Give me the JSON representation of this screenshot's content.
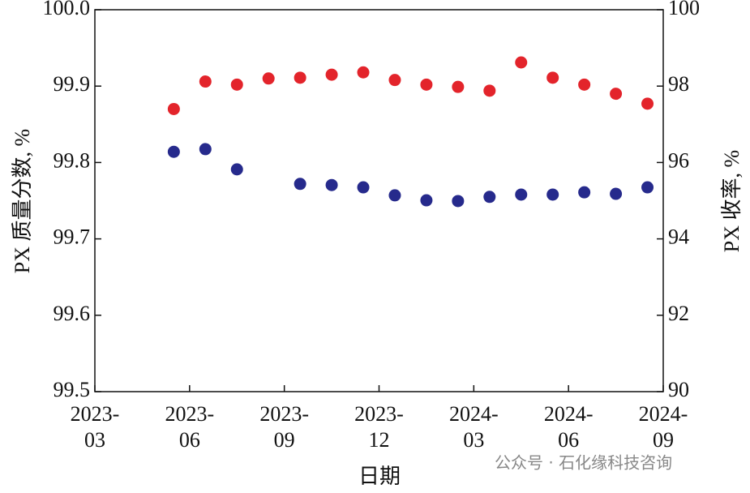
{
  "chart_data": {
    "type": "scatter",
    "y_label": "PX 质量分数, %",
    "y2_label": "PX 收率, %",
    "x_label": "日期",
    "watermark": "公众号 · 石化缘科技咨询",
    "x": [
      "2023-05",
      "2023-06",
      "2023-07",
      "2023-08",
      "2023-09",
      "2023-10",
      "2023-11",
      "2023-12",
      "2024-01",
      "2024-02",
      "2024-03",
      "2024-04",
      "2024-05",
      "2024-06",
      "2024-07",
      "2024-08"
    ],
    "xlim": [
      "2023-03",
      "2024-09"
    ],
    "xticks": [
      "2023-03",
      "2023-06",
      "2023-09",
      "2023-12",
      "2024-03",
      "2024-06",
      "2024-09"
    ],
    "ylim": [
      99.5,
      100.0
    ],
    "yticks": [
      99.5,
      99.6,
      99.7,
      99.8,
      99.9,
      {
        "value": 100.0,
        "label": "100.0"
      }
    ],
    "y2lim": [
      90,
      100
    ],
    "y2ticks": [
      90,
      92,
      94,
      96,
      98,
      100
    ],
    "series": [
      {
        "color": "#e3242b",
        "values": [
          99.87,
          99.906,
          99.902,
          99.91,
          99.911,
          99.915,
          99.918,
          99.908,
          99.902,
          99.899,
          99.894,
          99.931,
          99.911,
          99.902,
          99.89,
          99.877
        ]
      },
      {
        "color": "#262a8c",
        "axis": "y2",
        "values": [
          96.28,
          96.35,
          95.82,
          null,
          95.44,
          95.41,
          95.35,
          95.14,
          95.01,
          94.99,
          95.1,
          95.16,
          95.16,
          95.22,
          95.18,
          95.35
        ]
      }
    ]
  }
}
